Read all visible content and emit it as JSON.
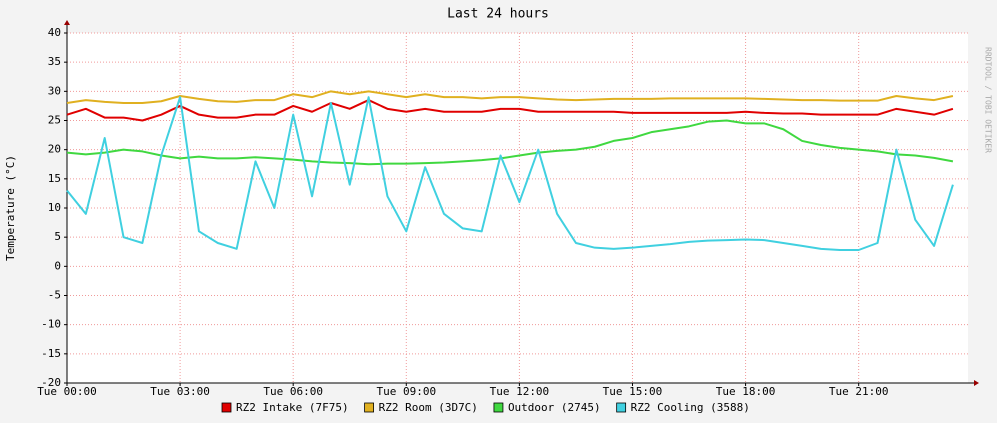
{
  "chart_data": {
    "type": "line",
    "title": "Last 24 hours",
    "y_label": "Temperature (°C)",
    "watermark": "RRDTOOL / TOBI OETIKER",
    "x": [
      0,
      0.5,
      1,
      1.5,
      2,
      2.5,
      3,
      3.5,
      4,
      4.5,
      5,
      5.5,
      6,
      6.5,
      7,
      7.5,
      8,
      8.5,
      9,
      9.5,
      10,
      10.5,
      11,
      11.5,
      12,
      12.5,
      13,
      13.5,
      14,
      14.5,
      15,
      15.5,
      16,
      16.5,
      17,
      17.5,
      18,
      18.5,
      19,
      19.5,
      20,
      20.5,
      21,
      21.5,
      22,
      22.5,
      23,
      23.5
    ],
    "xlim": [
      0,
      23.9
    ],
    "xticks": [
      {
        "value": 0,
        "label": "Tue 00:00"
      },
      {
        "value": 3,
        "label": "Tue 03:00"
      },
      {
        "value": 6,
        "label": "Tue 06:00"
      },
      {
        "value": 9,
        "label": "Tue 09:00"
      },
      {
        "value": 12,
        "label": "Tue 12:00"
      },
      {
        "value": 15,
        "label": "Tue 15:00"
      },
      {
        "value": 18,
        "label": "Tue 18:00"
      },
      {
        "value": 21,
        "label": "Tue 21:00"
      }
    ],
    "ylim": [
      -20,
      40
    ],
    "yticks": [
      -20,
      -15,
      -10,
      -5,
      0,
      5,
      10,
      15,
      20,
      25,
      30,
      35,
      40
    ],
    "grid": true,
    "series": [
      {
        "name": "RZ2 Intake (7F75)",
        "color": "#e00000",
        "values": [
          26,
          27,
          25.5,
          25.5,
          25,
          26,
          27.5,
          26,
          25.5,
          25.5,
          26,
          26,
          27.5,
          26.5,
          28,
          27,
          28.5,
          27,
          26.5,
          27,
          26.5,
          26.5,
          26.5,
          27,
          27,
          26.5,
          26.5,
          26.5,
          26.5,
          26.5,
          26.3,
          26.3,
          26.3,
          26.3,
          26.3,
          26.3,
          26.5,
          26.3,
          26.2,
          26.2,
          26,
          26,
          26,
          26,
          27,
          26.5,
          26,
          27
        ]
      },
      {
        "name": "RZ2 Room (3D7C)",
        "color": "#e0b020",
        "values": [
          28,
          28.5,
          28.2,
          28,
          28,
          28.3,
          29.2,
          28.7,
          28.3,
          28.2,
          28.5,
          28.5,
          29.5,
          29,
          30,
          29.5,
          30,
          29.5,
          29,
          29.5,
          29,
          29,
          28.8,
          29,
          29,
          28.8,
          28.6,
          28.5,
          28.6,
          28.7,
          28.7,
          28.7,
          28.8,
          28.8,
          28.8,
          28.8,
          28.8,
          28.7,
          28.6,
          28.5,
          28.5,
          28.4,
          28.4,
          28.4,
          29.2,
          28.8,
          28.5,
          29.2
        ]
      },
      {
        "name": "Outdoor (2745)",
        "color": "#40d840",
        "values": [
          19.5,
          19.2,
          19.5,
          20,
          19.7,
          19,
          18.5,
          18.8,
          18.5,
          18.5,
          18.7,
          18.5,
          18.3,
          18,
          17.8,
          17.7,
          17.5,
          17.6,
          17.6,
          17.7,
          17.8,
          18,
          18.2,
          18.5,
          19,
          19.5,
          19.8,
          20,
          20.5,
          21.5,
          22,
          23,
          23.5,
          24,
          24.8,
          25,
          24.5,
          24.5,
          23.5,
          21.5,
          20.8,
          20.3,
          20,
          19.7,
          19.2,
          19,
          18.6,
          18
        ]
      },
      {
        "name": "RZ2 Cooling (3588)",
        "color": "#40d0e0",
        "values": [
          13,
          9,
          22,
          5,
          4,
          19,
          29,
          6,
          4,
          3,
          18,
          10,
          26,
          12,
          28,
          14,
          29,
          12,
          6,
          17,
          9,
          6.5,
          6,
          19,
          11,
          20,
          9,
          4,
          3.2,
          3,
          3.2,
          3.5,
          3.8,
          4.2,
          4.4,
          4.5,
          4.6,
          4.5,
          4,
          3.5,
          3,
          2.8,
          2.8,
          4,
          20,
          8,
          3.5,
          14
        ]
      }
    ]
  }
}
